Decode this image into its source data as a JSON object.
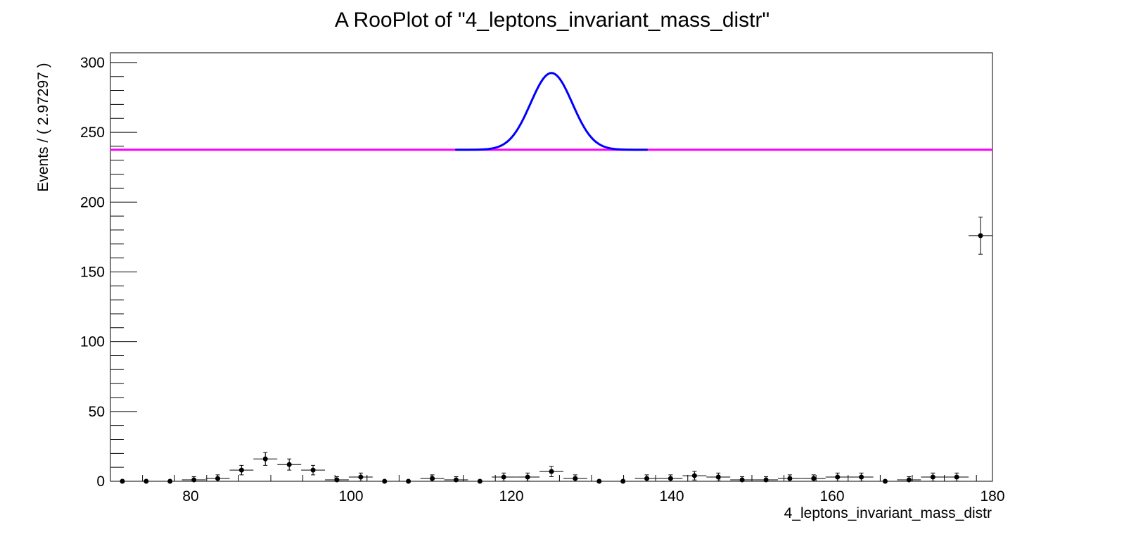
{
  "chart_data": {
    "type": "scatter",
    "title": "A RooPlot of \"4_leptons_invariant_mass_distr\"",
    "xlabel": "4_leptons_invariant_mass_distr",
    "ylabel": "Events / ( 2.97297 )",
    "xlim": [
      70,
      180
    ],
    "ylim": [
      0,
      307
    ],
    "x_ticks": [
      80,
      100,
      120,
      140,
      160,
      180
    ],
    "y_ticks": [
      0,
      50,
      100,
      150,
      200,
      250,
      300
    ],
    "grid": false,
    "legend": "none",
    "bin_width": 2.97297,
    "series": [
      {
        "type": "points_with_errors",
        "color": "#000000",
        "x": [
          71.49,
          74.46,
          77.43,
          80.41,
          83.38,
          86.35,
          89.32,
          92.3,
          95.27,
          98.24,
          101.22,
          104.19,
          107.16,
          110.14,
          113.11,
          116.08,
          119.05,
          122.03,
          125.0,
          127.97,
          130.95,
          133.92,
          136.89,
          139.86,
          142.84,
          145.81,
          148.78,
          151.76,
          154.73,
          157.7,
          160.68,
          163.65,
          166.62,
          169.59,
          172.57,
          175.54,
          178.51
        ],
        "y": [
          0,
          0,
          0,
          1,
          2,
          8,
          16,
          12,
          8,
          1,
          3,
          0,
          0,
          2,
          1,
          0,
          3,
          3,
          7,
          2,
          0,
          0,
          2,
          2,
          4,
          3,
          1,
          1,
          2,
          2,
          3,
          3,
          0,
          1,
          3,
          3,
          176
        ],
        "yerr": [
          0,
          0,
          0,
          2.3,
          2.6,
          3.4,
          4.6,
          4.0,
          3.4,
          2.3,
          2.9,
          0,
          0,
          2.6,
          2.3,
          0,
          2.9,
          2.9,
          3.7,
          2.6,
          0,
          0,
          2.6,
          2.6,
          3.1,
          2.9,
          2.3,
          2.3,
          2.6,
          2.6,
          2.9,
          2.9,
          0,
          2.3,
          2.9,
          2.9,
          13.3
        ]
      },
      {
        "type": "curve",
        "color": "#0000ff",
        "baseline": 237.5,
        "amplitude": 55,
        "mean": 125,
        "sigma": 2.6,
        "x_range": [
          113,
          137
        ]
      },
      {
        "type": "line",
        "color": "#ff00ff",
        "y": 237.5,
        "x_range": [
          70,
          180
        ]
      }
    ]
  }
}
